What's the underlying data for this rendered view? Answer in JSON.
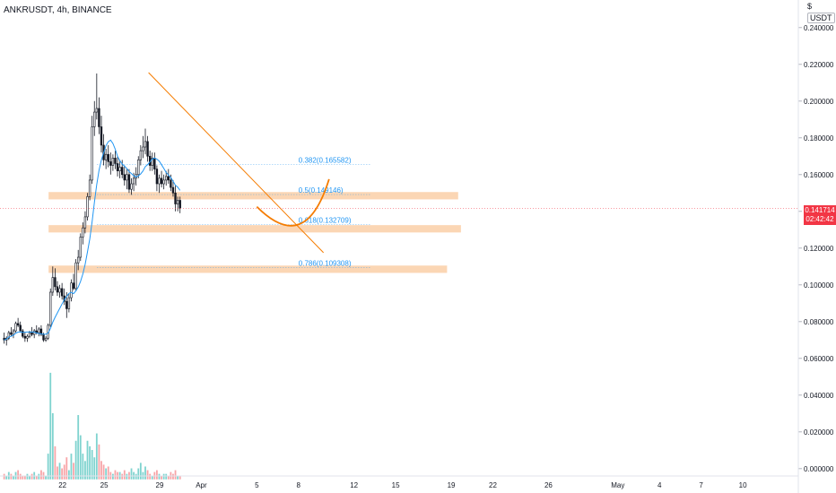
{
  "title": "ANKRUSDT, 4h, BINANCE",
  "unit": {
    "letter": "$",
    "currency": "USDT"
  },
  "current_price": {
    "price": "0.141714",
    "countdown": "02:42:42"
  },
  "colors": {
    "up": "#ffffff",
    "down": "#131722",
    "ma": "#2196f3",
    "trend": "#f57c00",
    "zone": "#f9c89b",
    "volume_up": "#7fd3cf",
    "volume_down": "#f8a5a8",
    "price_tag": "#f23645"
  },
  "chart_data": {
    "type": "candlestick",
    "interval": "4h",
    "price_axis": {
      "ticks": [
        "0.240000",
        "0.220000",
        "0.200000",
        "0.180000",
        "0.160000",
        "0.140000",
        "0.120000",
        "0.100000",
        "0.080000",
        "0.060000",
        "0.040000",
        "0.020000",
        "0.000000"
      ],
      "range": [
        -0.004,
        0.255
      ]
    },
    "time_axis": {
      "labels": [
        "22",
        "25",
        "29",
        "Apr",
        "5",
        "8",
        "12",
        "15",
        "19",
        "22",
        "26",
        "May",
        "4",
        "7",
        "10"
      ],
      "day_index": [
        0,
        3,
        7,
        10,
        14,
        17,
        21,
        24,
        28,
        31,
        35,
        40,
        43,
        46,
        49
      ],
      "range_days": [
        -4.5,
        53
      ]
    },
    "fibonacci": [
      {
        "label": "0.382(0.165582)",
        "price": 0.165582
      },
      {
        "label": "0.5(0.149146)",
        "price": 0.149146
      },
      {
        "label": "0.618(0.132709)",
        "price": 0.132709
      },
      {
        "label": "0.786(0.109308)",
        "price": 0.109308
      }
    ],
    "zones": [
      {
        "day_from": -1.0,
        "day_to": 28.5,
        "price_low": 0.1465,
        "price_high": 0.1505
      },
      {
        "day_from": -1.0,
        "day_to": 28.7,
        "price_low": 0.1285,
        "price_high": 0.1325
      },
      {
        "day_from": -1.0,
        "day_to": 27.7,
        "price_low": 0.1065,
        "price_high": 0.1105
      }
    ],
    "trendline": {
      "from": [
        6.2,
        0.2155
      ],
      "to": [
        18.8,
        0.1175
      ]
    },
    "projection_curve": {
      "from": [
        14.0,
        0.1425
      ],
      "control": [
        17.5,
        0.116
      ],
      "to": [
        19.2,
        0.1575
      ]
    },
    "candles": [
      [
        0.071,
        0.074,
        0.068,
        0.07
      ],
      [
        0.07,
        0.072,
        0.067,
        0.071
      ],
      [
        0.071,
        0.075,
        0.07,
        0.074
      ],
      [
        0.074,
        0.077,
        0.072,
        0.073
      ],
      [
        0.073,
        0.076,
        0.071,
        0.075
      ],
      [
        0.075,
        0.08,
        0.074,
        0.079
      ],
      [
        0.079,
        0.082,
        0.077,
        0.078
      ],
      [
        0.078,
        0.08,
        0.074,
        0.075
      ],
      [
        0.075,
        0.076,
        0.071,
        0.072
      ],
      [
        0.072,
        0.074,
        0.069,
        0.071
      ],
      [
        0.071,
        0.073,
        0.069,
        0.072
      ],
      [
        0.072,
        0.075,
        0.071,
        0.074
      ],
      [
        0.074,
        0.077,
        0.072,
        0.073
      ],
      [
        0.073,
        0.076,
        0.071,
        0.075
      ],
      [
        0.075,
        0.078,
        0.073,
        0.074
      ],
      [
        0.074,
        0.077,
        0.072,
        0.076
      ],
      [
        0.076,
        0.078,
        0.072,
        0.073
      ],
      [
        0.073,
        0.074,
        0.069,
        0.07
      ],
      [
        0.07,
        0.072,
        0.069,
        0.071
      ],
      [
        0.071,
        0.079,
        0.07,
        0.078
      ],
      [
        0.078,
        0.098,
        0.077,
        0.096
      ],
      [
        0.096,
        0.11,
        0.094,
        0.104
      ],
      [
        0.104,
        0.109,
        0.097,
        0.099
      ],
      [
        0.099,
        0.102,
        0.094,
        0.096
      ],
      [
        0.096,
        0.1,
        0.093,
        0.098
      ],
      [
        0.098,
        0.101,
        0.092,
        0.094
      ],
      [
        0.094,
        0.098,
        0.089,
        0.091
      ],
      [
        0.091,
        0.096,
        0.082,
        0.087
      ],
      [
        0.087,
        0.095,
        0.085,
        0.093
      ],
      [
        0.093,
        0.103,
        0.091,
        0.101
      ],
      [
        0.101,
        0.106,
        0.097,
        0.098
      ],
      [
        0.098,
        0.114,
        0.097,
        0.112
      ],
      [
        0.112,
        0.119,
        0.108,
        0.115
      ],
      [
        0.115,
        0.128,
        0.113,
        0.126
      ],
      [
        0.126,
        0.134,
        0.122,
        0.131
      ],
      [
        0.131,
        0.14,
        0.128,
        0.137
      ],
      [
        0.137,
        0.15,
        0.135,
        0.148
      ],
      [
        0.148,
        0.16,
        0.146,
        0.157
      ],
      [
        0.157,
        0.192,
        0.155,
        0.186
      ],
      [
        0.186,
        0.2,
        0.181,
        0.194
      ],
      [
        0.194,
        0.215,
        0.19,
        0.196
      ],
      [
        0.196,
        0.202,
        0.182,
        0.186
      ],
      [
        0.186,
        0.192,
        0.172,
        0.176
      ],
      [
        0.176,
        0.182,
        0.165,
        0.168
      ],
      [
        0.168,
        0.174,
        0.163,
        0.171
      ],
      [
        0.171,
        0.176,
        0.164,
        0.167
      ],
      [
        0.167,
        0.172,
        0.16,
        0.165
      ],
      [
        0.165,
        0.171,
        0.162,
        0.169
      ],
      [
        0.169,
        0.173,
        0.163,
        0.166
      ],
      [
        0.166,
        0.17,
        0.159,
        0.162
      ],
      [
        0.162,
        0.168,
        0.158,
        0.164
      ],
      [
        0.164,
        0.168,
        0.158,
        0.16
      ],
      [
        0.16,
        0.165,
        0.154,
        0.157
      ],
      [
        0.157,
        0.163,
        0.152,
        0.16
      ],
      [
        0.16,
        0.163,
        0.15,
        0.152
      ],
      [
        0.152,
        0.158,
        0.149,
        0.155
      ],
      [
        0.155,
        0.161,
        0.151,
        0.158
      ],
      [
        0.158,
        0.164,
        0.154,
        0.16
      ],
      [
        0.16,
        0.17,
        0.158,
        0.168
      ],
      [
        0.168,
        0.176,
        0.165,
        0.173
      ],
      [
        0.173,
        0.181,
        0.169,
        0.175
      ],
      [
        0.175,
        0.185,
        0.171,
        0.178
      ],
      [
        0.178,
        0.181,
        0.167,
        0.17
      ],
      [
        0.17,
        0.173,
        0.162,
        0.165
      ],
      [
        0.165,
        0.172,
        0.162,
        0.169
      ],
      [
        0.169,
        0.172,
        0.16,
        0.163
      ],
      [
        0.163,
        0.165,
        0.151,
        0.155
      ],
      [
        0.155,
        0.16,
        0.15,
        0.158
      ],
      [
        0.158,
        0.162,
        0.153,
        0.155
      ],
      [
        0.155,
        0.16,
        0.152,
        0.157
      ],
      [
        0.157,
        0.162,
        0.154,
        0.159
      ],
      [
        0.159,
        0.163,
        0.155,
        0.157
      ],
      [
        0.157,
        0.16,
        0.151,
        0.153
      ],
      [
        0.153,
        0.157,
        0.148,
        0.15
      ],
      [
        0.15,
        0.154,
        0.14,
        0.144
      ],
      [
        0.144,
        0.148,
        0.14,
        0.146
      ],
      [
        0.146,
        0.148,
        0.139,
        0.1417
      ]
    ],
    "volume_range": [
      0,
      0.06
    ],
    "volumes": [
      0.003,
      0.002,
      0.004,
      0.003,
      0.002,
      0.004,
      0.005,
      0.003,
      0.002,
      0.002,
      0.003,
      0.002,
      0.003,
      0.004,
      0.002,
      0.003,
      0.005,
      0.004,
      0.002,
      0.014,
      0.058,
      0.036,
      0.018,
      0.007,
      0.009,
      0.006,
      0.008,
      0.012,
      0.005,
      0.014,
      0.009,
      0.021,
      0.035,
      0.024,
      0.014,
      0.01,
      0.021,
      0.018,
      0.016,
      0.012,
      0.025,
      0.019,
      0.01,
      0.008,
      0.006,
      0.007,
      0.004,
      0.003,
      0.005,
      0.004,
      0.004,
      0.003,
      0.005,
      0.003,
      0.004,
      0.006,
      0.004,
      0.003,
      0.006,
      0.009,
      0.004,
      0.007,
      0.005,
      0.003,
      0.002,
      0.004,
      0.005,
      0.003,
      0.002,
      0.003,
      0.003,
      0.002,
      0.004,
      0.003,
      0.005,
      0.002,
      0.002
    ]
  }
}
